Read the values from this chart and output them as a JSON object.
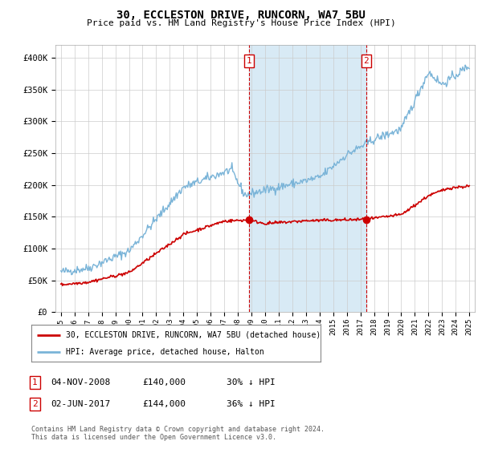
{
  "title": "30, ECCLESTON DRIVE, RUNCORN, WA7 5BU",
  "subtitle": "Price paid vs. HM Land Registry's House Price Index (HPI)",
  "ylabel_ticks": [
    "£0",
    "£50K",
    "£100K",
    "£150K",
    "£200K",
    "£250K",
    "£300K",
    "£350K",
    "£400K"
  ],
  "ylim": [
    0,
    420000
  ],
  "yticks": [
    0,
    50000,
    100000,
    150000,
    200000,
    250000,
    300000,
    350000,
    400000
  ],
  "hpi_color": "#7ab4d8",
  "price_color": "#cc0000",
  "bg_color": "#ffffff",
  "plot_bg": "#ffffff",
  "shade_color": "#d8eaf5",
  "marker1_x": 2008.84,
  "marker2_x": 2017.42,
  "marker1_label": "1",
  "marker2_label": "2",
  "legend_entry1": "30, ECCLESTON DRIVE, RUNCORN, WA7 5BU (detached house)",
  "legend_entry2": "HPI: Average price, detached house, Halton",
  "table_row1": [
    "1",
    "04-NOV-2008",
    "£140,000",
    "30% ↓ HPI"
  ],
  "table_row2": [
    "2",
    "02-JUN-2017",
    "£144,000",
    "36% ↓ HPI"
  ],
  "footer": "Contains HM Land Registry data © Crown copyright and database right 2024.\nThis data is licensed under the Open Government Licence v3.0."
}
